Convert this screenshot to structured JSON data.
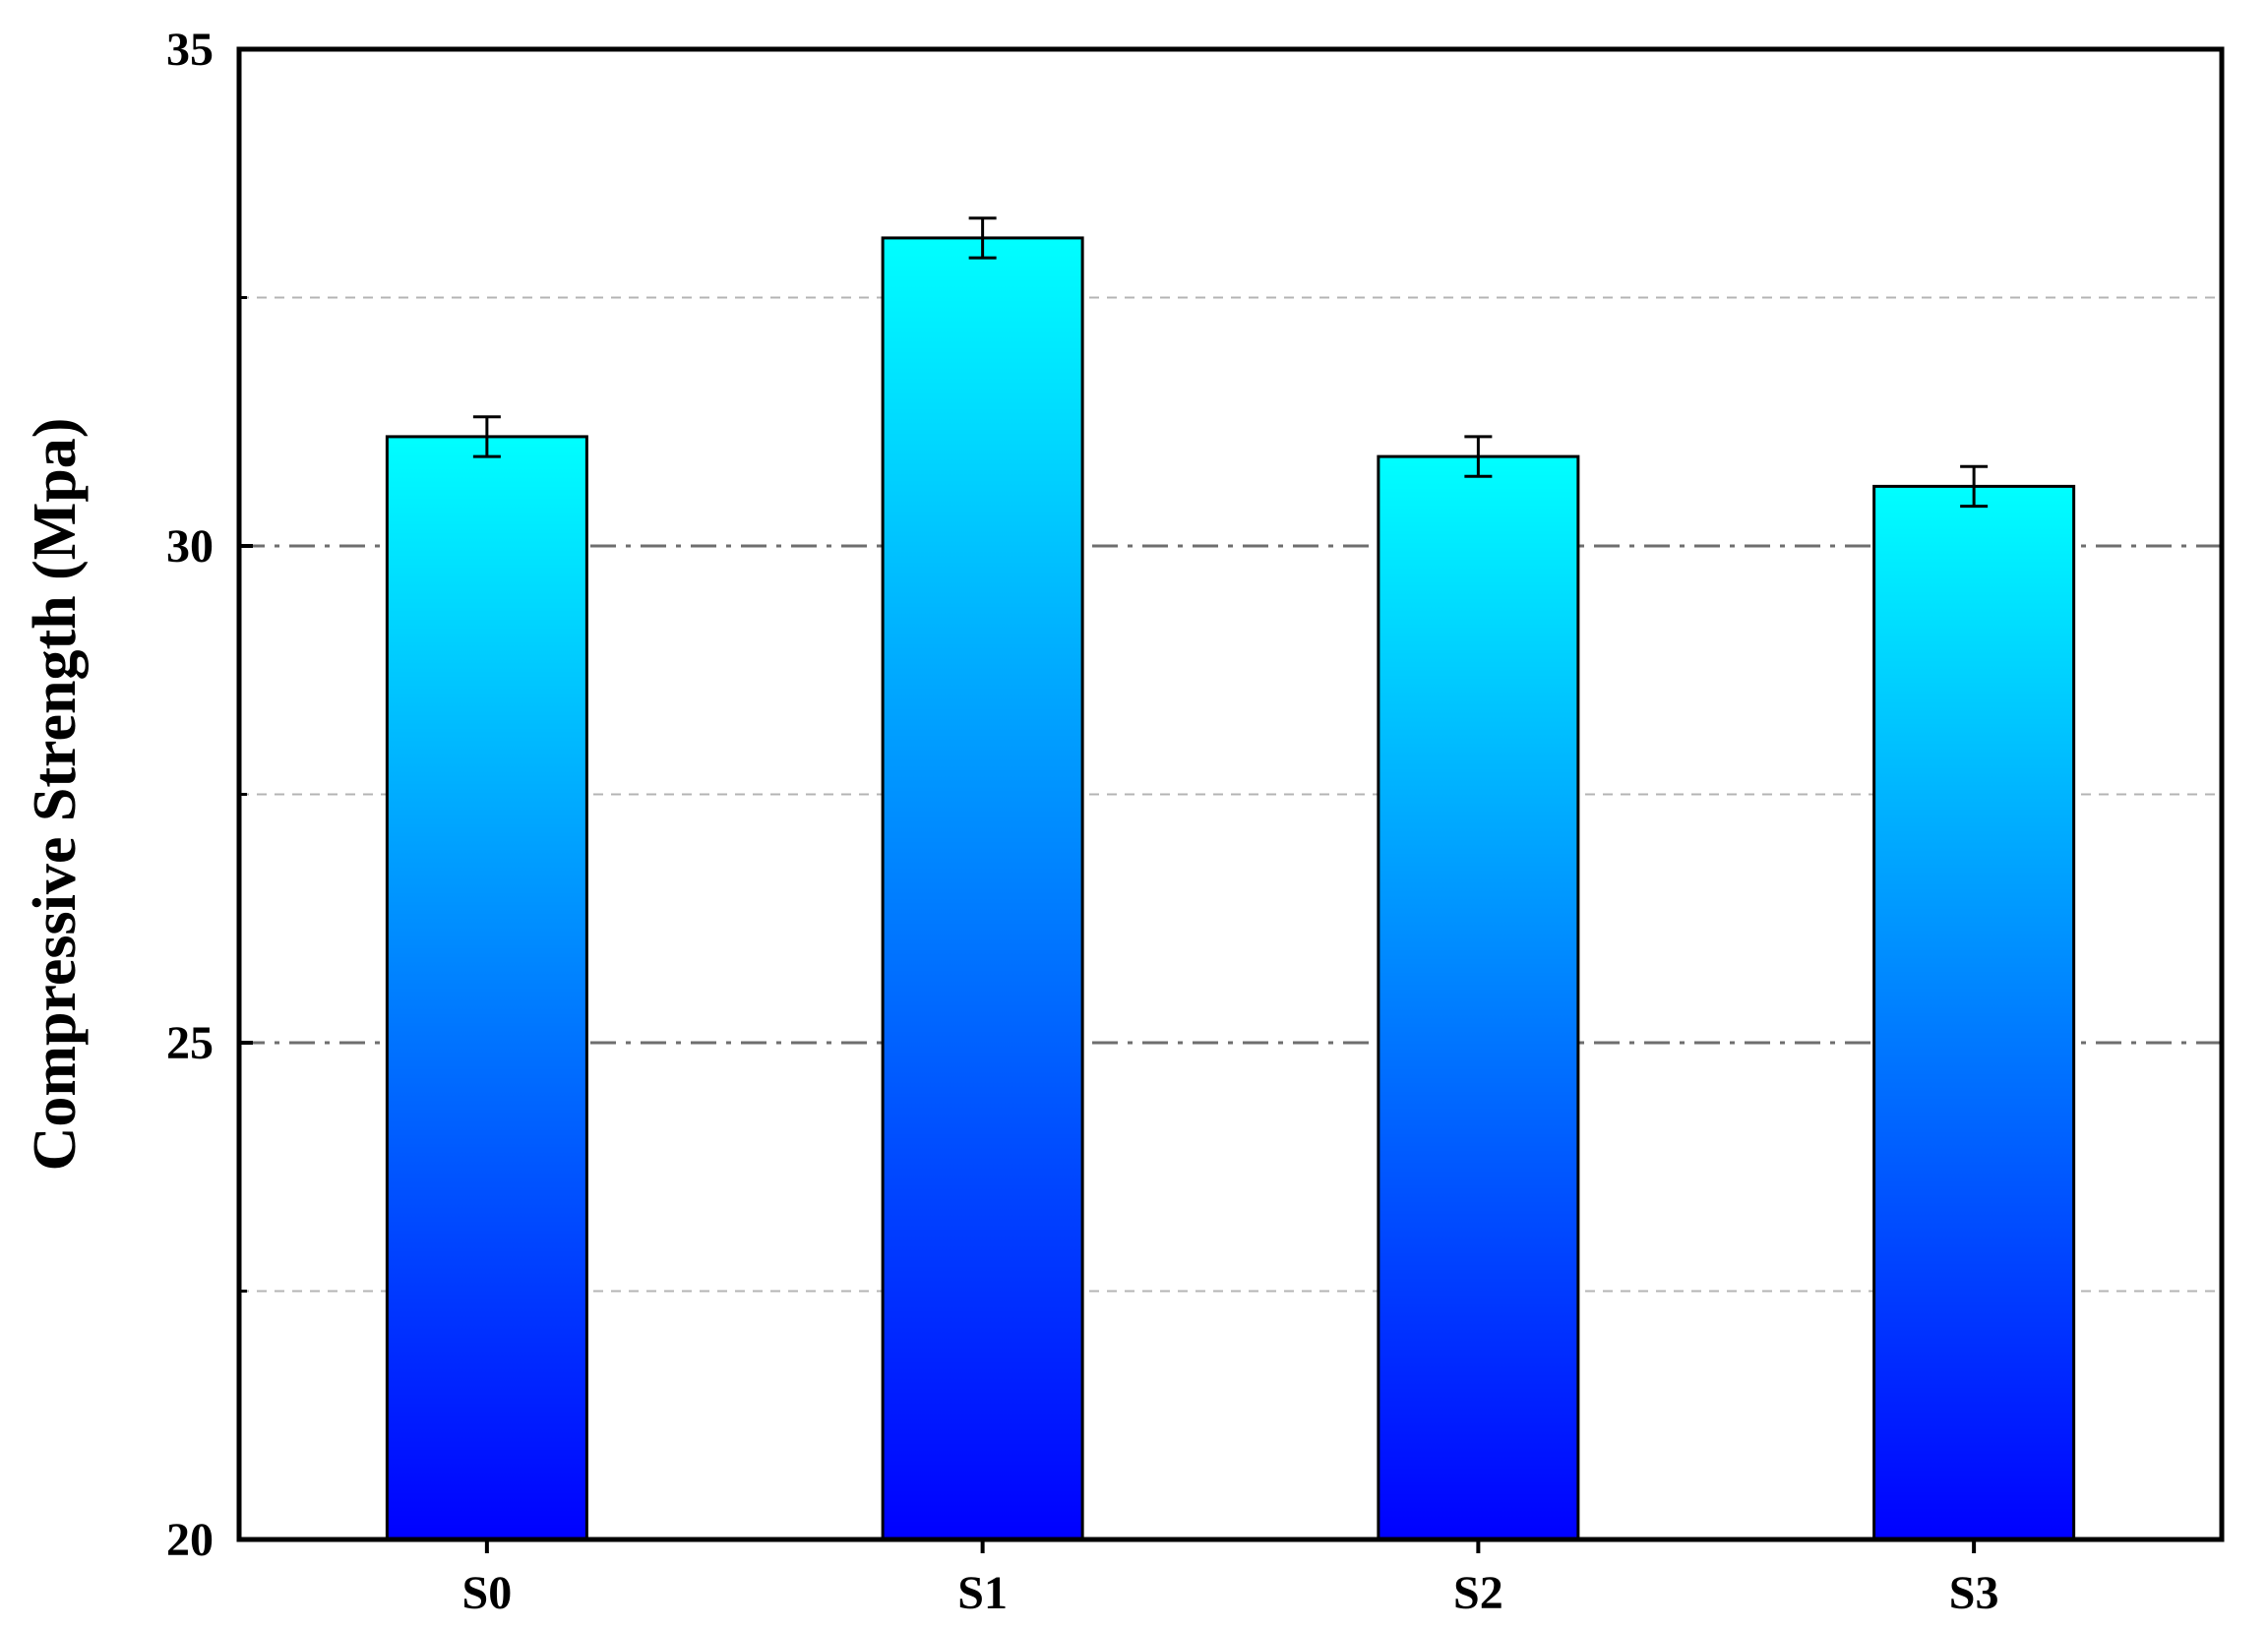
{
  "chart_data": {
    "type": "bar",
    "title": "",
    "xlabel": "",
    "ylabel": "Compressive Strength (Mpa)",
    "categories": [
      "S0",
      "S1",
      "S2",
      "S3"
    ],
    "series": [
      {
        "values": [
          31.1,
          33.1,
          30.9,
          30.6
        ],
        "errors": [
          0.2,
          0.2,
          0.2,
          0.2
        ]
      }
    ],
    "ylim": [
      20,
      35
    ],
    "yticks": [
      20,
      25,
      30,
      35
    ],
    "ytick_labels": [
      "20",
      "25",
      "30",
      "35"
    ],
    "major_gridlines": [
      25,
      30
    ],
    "minor_gridlines": [
      22.5,
      27.5,
      32.5
    ],
    "grid": true,
    "legend": "none",
    "colors": {
      "bar_top": "#00ffff",
      "bar_bottom": "#0000ff",
      "bar_edge": "#000000",
      "major_grid": "#6e6e6e",
      "minor_grid": "#b4b4b4"
    }
  }
}
